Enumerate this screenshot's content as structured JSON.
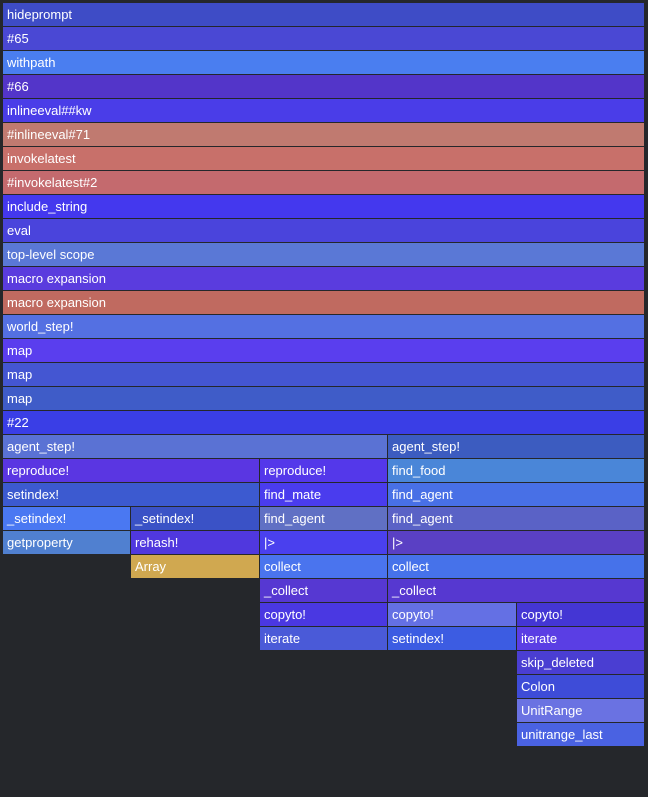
{
  "chart_data": {
    "type": "flamegraph",
    "title": "",
    "orientation": "top-down",
    "total_samples": 100,
    "background_color": "#25272b",
    "frames": [
      {
        "name": "hideprompt",
        "depth": 0,
        "start": 0,
        "width": 100,
        "color": "#3e4cc6"
      },
      {
        "name": "#65",
        "depth": 1,
        "start": 0,
        "width": 100,
        "color": "#4a48d4"
      },
      {
        "name": "withpath",
        "depth": 2,
        "start": 0,
        "width": 100,
        "color": "#4a7ef0"
      },
      {
        "name": "#66",
        "depth": 3,
        "start": 0,
        "width": 100,
        "color": "#5335c9"
      },
      {
        "name": "inlineeval##kw",
        "depth": 4,
        "start": 0,
        "width": 100,
        "color": "#4a3de8"
      },
      {
        "name": "#inlineeval#71",
        "depth": 5,
        "start": 0,
        "width": 100,
        "color": "#c07a70"
      },
      {
        "name": "invokelatest",
        "depth": 6,
        "start": 0,
        "width": 100,
        "color": "#c8706a"
      },
      {
        "name": "#invokelatest#2",
        "depth": 7,
        "start": 0,
        "width": 100,
        "color": "#c46a6e"
      },
      {
        "name": "include_string",
        "depth": 8,
        "start": 0,
        "width": 100,
        "color": "#4438ee"
      },
      {
        "name": "eval",
        "depth": 9,
        "start": 0,
        "width": 100,
        "color": "#4a44dc"
      },
      {
        "name": "top-level scope",
        "depth": 10,
        "start": 0,
        "width": 100,
        "color": "#5a78d6"
      },
      {
        "name": "macro expansion",
        "depth": 11,
        "start": 0,
        "width": 100,
        "color": "#5a3cde"
      },
      {
        "name": "macro expansion",
        "depth": 12,
        "start": 0,
        "width": 100,
        "color": "#c06a60"
      },
      {
        "name": "world_step!",
        "depth": 13,
        "start": 0,
        "width": 100,
        "color": "#5470e2"
      },
      {
        "name": "map",
        "depth": 14,
        "start": 0,
        "width": 100,
        "color": "#5a3eee"
      },
      {
        "name": "map",
        "depth": 15,
        "start": 0,
        "width": 100,
        "color": "#4456d2"
      },
      {
        "name": "map",
        "depth": 16,
        "start": 0,
        "width": 100,
        "color": "#3f5cc8"
      },
      {
        "name": "#22",
        "depth": 17,
        "start": 0,
        "width": 100,
        "color": "#3a3ee6"
      },
      {
        "name": "agent_step!",
        "depth": 18,
        "start": 0,
        "width": 60,
        "color": "#5a72d4"
      },
      {
        "name": "agent_step!",
        "depth": 18,
        "start": 60,
        "width": 40,
        "color": "#3c5cc0"
      },
      {
        "name": "reproduce!",
        "depth": 19,
        "start": 0,
        "width": 40,
        "color": "#5a36e2"
      },
      {
        "name": "reproduce!",
        "depth": 19,
        "start": 40,
        "width": 20,
        "color": "#5438ea"
      },
      {
        "name": "find_food",
        "depth": 19,
        "start": 60,
        "width": 40,
        "color": "#4a86d8"
      },
      {
        "name": "setindex!",
        "depth": 20,
        "start": 0,
        "width": 40,
        "color": "#3c5ad0"
      },
      {
        "name": "find_mate",
        "depth": 20,
        "start": 40,
        "width": 20,
        "color": "#4a3cee"
      },
      {
        "name": "find_agent",
        "depth": 20,
        "start": 60,
        "width": 40,
        "color": "#4870e6"
      },
      {
        "name": "_setindex!",
        "depth": 21,
        "start": 0,
        "width": 20,
        "color": "#4a78f2"
      },
      {
        "name": "_setindex!",
        "depth": 21,
        "start": 20,
        "width": 20,
        "color": "#3a52c6"
      },
      {
        "name": "find_agent",
        "depth": 21,
        "start": 40,
        "width": 20,
        "color": "#6070c4"
      },
      {
        "name": "find_agent",
        "depth": 21,
        "start": 60,
        "width": 40,
        "color": "#5a62c6"
      },
      {
        "name": "getproperty",
        "depth": 22,
        "start": 0,
        "width": 20,
        "color": "#5080d0"
      },
      {
        "name": "rehash!",
        "depth": 22,
        "start": 20,
        "width": 20,
        "color": "#5038de"
      },
      {
        "name": "|>",
        "depth": 22,
        "start": 40,
        "width": 20,
        "color": "#4a40ee"
      },
      {
        "name": "|>",
        "depth": 22,
        "start": 60,
        "width": 40,
        "color": "#5a40c4"
      },
      {
        "name": "Array",
        "depth": 23,
        "start": 20,
        "width": 20,
        "color": "#d0a850"
      },
      {
        "name": "collect",
        "depth": 23,
        "start": 40,
        "width": 20,
        "color": "#4a74ee"
      },
      {
        "name": "collect",
        "depth": 23,
        "start": 60,
        "width": 40,
        "color": "#4672ea"
      },
      {
        "name": "_collect",
        "depth": 24,
        "start": 40,
        "width": 20,
        "color": "#5638d2"
      },
      {
        "name": "_collect",
        "depth": 24,
        "start": 60,
        "width": 40,
        "color": "#5638d0"
      },
      {
        "name": "copyto!",
        "depth": 25,
        "start": 40,
        "width": 20,
        "color": "#4a38e2"
      },
      {
        "name": "copyto!",
        "depth": 25,
        "start": 60,
        "width": 20,
        "color": "#6470e4"
      },
      {
        "name": "copyto!",
        "depth": 25,
        "start": 80,
        "width": 20,
        "color": "#4436d4"
      },
      {
        "name": "iterate",
        "depth": 26,
        "start": 40,
        "width": 20,
        "color": "#4a5ad8"
      },
      {
        "name": "setindex!",
        "depth": 26,
        "start": 60,
        "width": 20,
        "color": "#3c5ce2"
      },
      {
        "name": "iterate",
        "depth": 26,
        "start": 80,
        "width": 20,
        "color": "#5a3ee4"
      },
      {
        "name": "skip_deleted",
        "depth": 27,
        "start": 80,
        "width": 20,
        "color": "#4a3ed2"
      },
      {
        "name": "Colon",
        "depth": 28,
        "start": 80,
        "width": 20,
        "color": "#3e4cd8"
      },
      {
        "name": "UnitRange",
        "depth": 29,
        "start": 80,
        "width": 20,
        "color": "#6a72e2"
      },
      {
        "name": "unitrange_last",
        "depth": 30,
        "start": 80,
        "width": 20,
        "color": "#4a62e2"
      }
    ]
  }
}
